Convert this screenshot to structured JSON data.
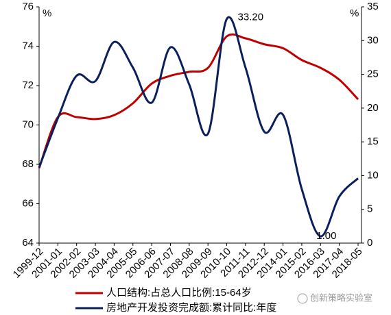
{
  "chart_data": {
    "type": "line",
    "left_unit": "%",
    "right_unit": "%",
    "categories": [
      "1999-12",
      "2001-01",
      "2002-02",
      "2003-03",
      "2004-04",
      "2005-05",
      "2006-06",
      "2007-07",
      "2008-08",
      "2009-09",
      "2010-10",
      "2011-11",
      "2012-12",
      "2014-01",
      "2015-02",
      "2016-03",
      "2017-04",
      "2018-05"
    ],
    "series": [
      {
        "name": "人口结构:占总人口比例:15-64岁",
        "color": "#c00000",
        "values": [
          67.8,
          70.4,
          70.4,
          70.3,
          70.5,
          71.1,
          72.1,
          72.5,
          72.7,
          72.9,
          74.5,
          74.4,
          74.1,
          73.9,
          73.3,
          72.9,
          72.3,
          71.3
        ]
      },
      {
        "name": "房地产开发投资完成额:累计同比:年度",
        "color": "#0b1f5c",
        "axis": "y2",
        "values": [
          11.2,
          18.5,
          24.8,
          24,
          29.8,
          26,
          20.8,
          29,
          23.5,
          16.2,
          33.2,
          26,
          16.5,
          19,
          8,
          1.0,
          6.9,
          9.6
        ],
        "value_labels": [
          null,
          null,
          null,
          null,
          null,
          null,
          null,
          null,
          null,
          null,
          "33.20",
          null,
          null,
          null,
          null,
          "1.00",
          null,
          null
        ]
      }
    ],
    "ylim": [
      64,
      76
    ],
    "yticks": [
      64,
      66,
      68,
      70,
      72,
      74,
      76
    ],
    "y2lim": [
      0,
      35
    ],
    "y2ticks": [
      0,
      5,
      10,
      15,
      20,
      25,
      30,
      35
    ],
    "watermark": "创新策略实验室"
  }
}
